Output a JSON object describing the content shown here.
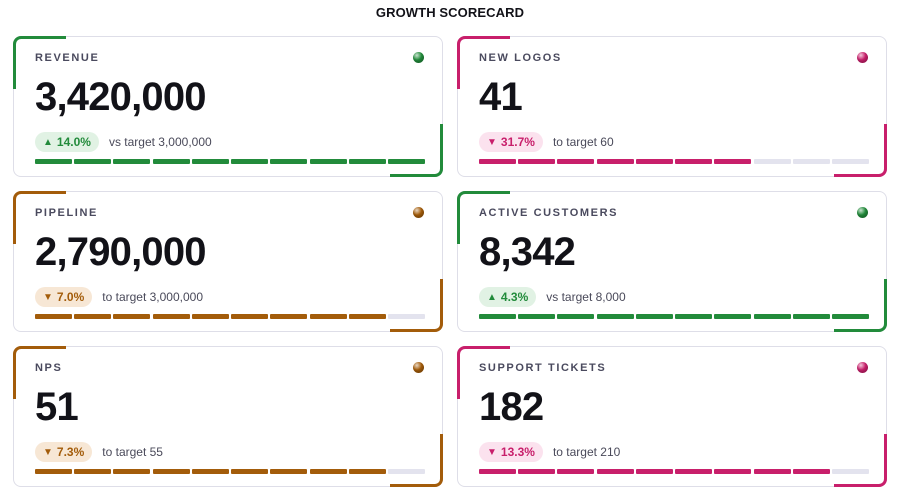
{
  "title": "GROWTH SCORECARD",
  "colors": {
    "green": "#228b3b",
    "magenta": "#c81f6b",
    "amber": "#a35c0a",
    "green_badge_bg": "#e1f2e4",
    "magenta_badge_bg": "#fbe2ee",
    "amber_badge_bg": "#f7e7d5",
    "empty_segment": "#e3e3ee"
  },
  "cards": [
    {
      "label": "REVENUE",
      "value": "3,420,000",
      "direction": "up",
      "arrow": "▲",
      "delta": "14.0%",
      "target_text": "vs target 3,000,000",
      "accent": "green",
      "segments_total": 10,
      "segments_filled": 10
    },
    {
      "label": "NEW LOGOS",
      "value": "41",
      "direction": "down",
      "arrow": "▼",
      "delta": "31.7%",
      "target_text": "to target 60",
      "accent": "magenta",
      "segments_total": 10,
      "segments_filled": 7
    },
    {
      "label": "PIPELINE",
      "value": "2,790,000",
      "direction": "down",
      "arrow": "▼",
      "delta": "7.0%",
      "target_text": "to target 3,000,000",
      "accent": "amber",
      "segments_total": 10,
      "segments_filled": 9
    },
    {
      "label": "ACTIVE CUSTOMERS",
      "value": "8,342",
      "direction": "up",
      "arrow": "▲",
      "delta": "4.3%",
      "target_text": "vs target 8,000",
      "accent": "green",
      "segments_total": 10,
      "segments_filled": 10
    },
    {
      "label": "NPS",
      "value": "51",
      "direction": "down",
      "arrow": "▼",
      "delta": "7.3%",
      "target_text": "to target 55",
      "accent": "amber",
      "segments_total": 10,
      "segments_filled": 9
    },
    {
      "label": "SUPPORT TICKETS",
      "value": "182",
      "direction": "down",
      "arrow": "▼",
      "delta": "13.3%",
      "target_text": "to target 210",
      "accent": "magenta",
      "segments_total": 10,
      "segments_filled": 9
    }
  ]
}
